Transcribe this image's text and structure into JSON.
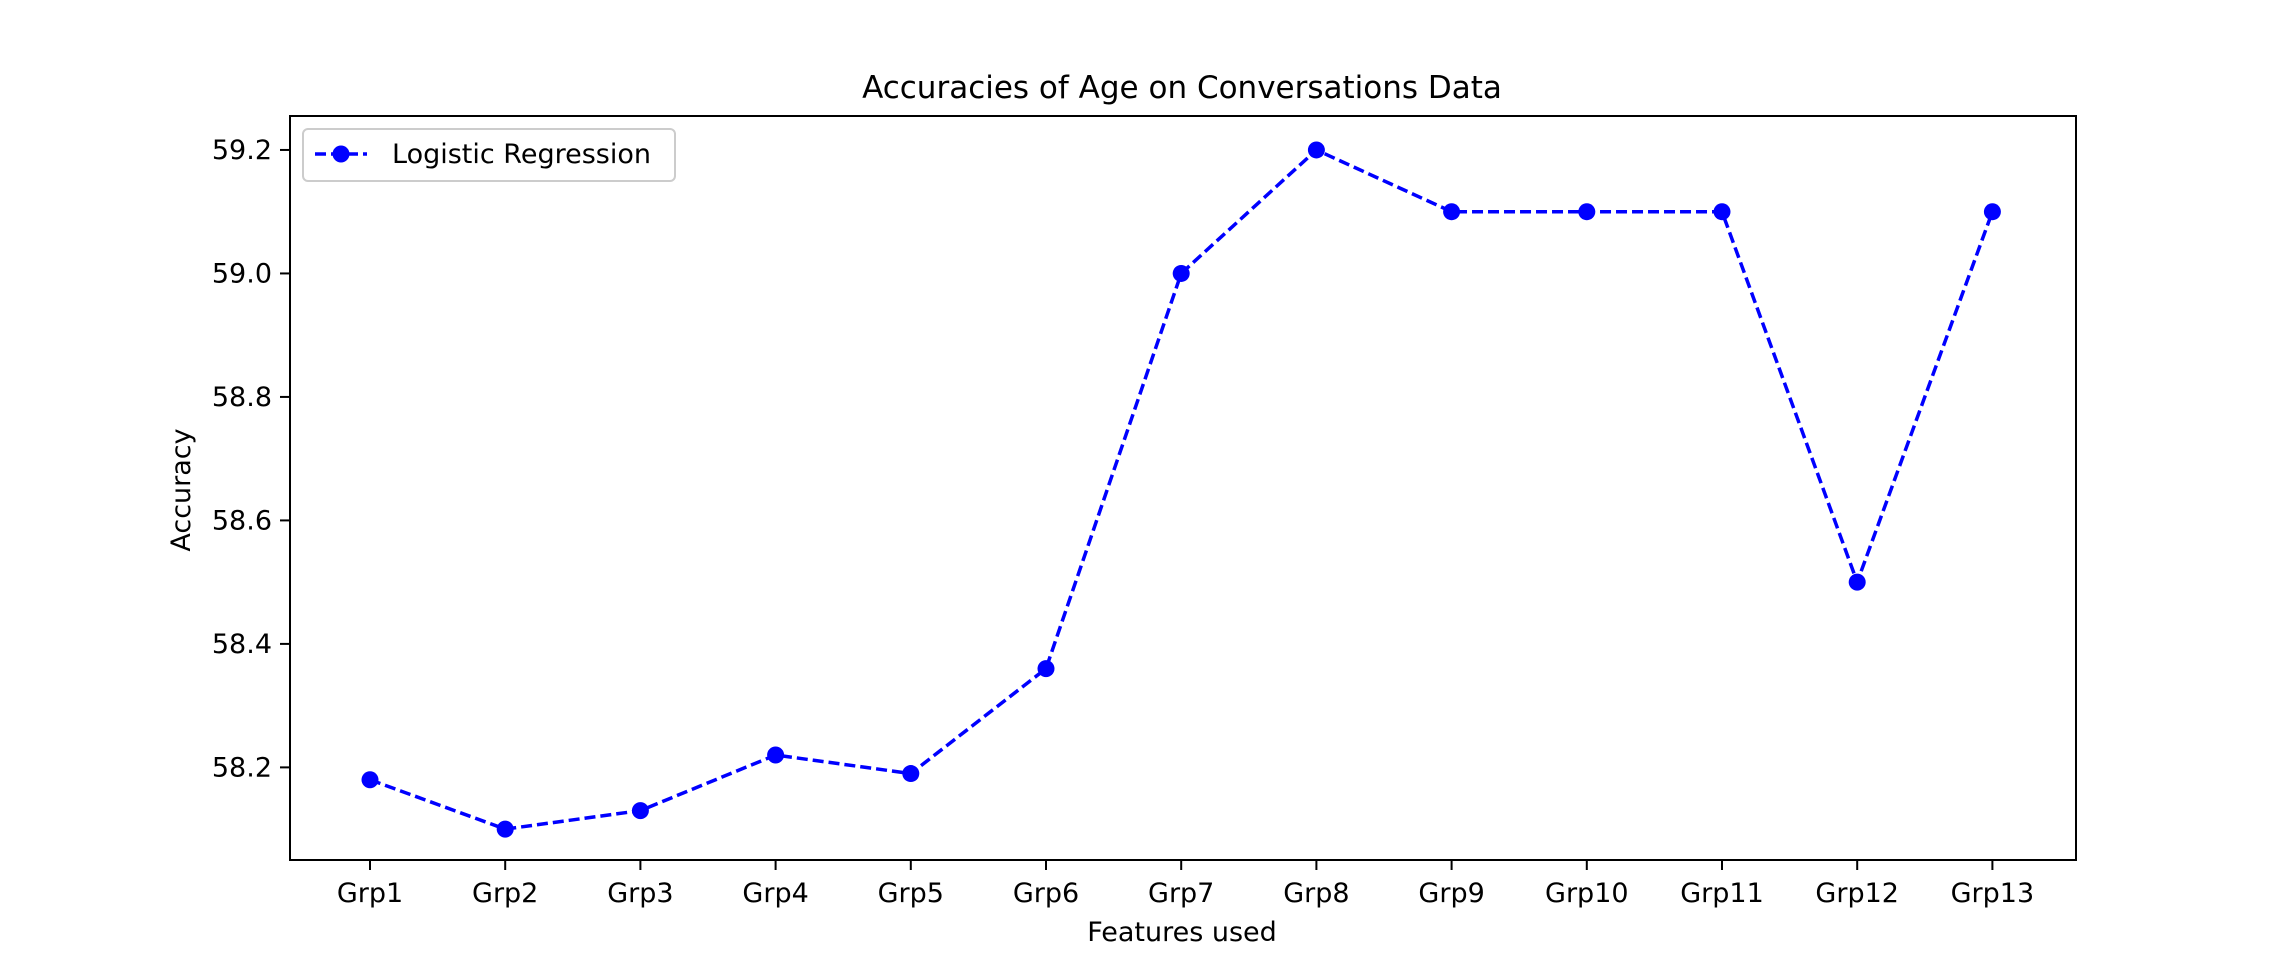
{
  "chart_data": {
    "type": "line",
    "title": "Accuracies of Age on Conversations Data",
    "xlabel": "Features used",
    "ylabel": "Accuracy",
    "categories": [
      "Grp1",
      "Grp2",
      "Grp3",
      "Grp4",
      "Grp5",
      "Grp6",
      "Grp7",
      "Grp8",
      "Grp9",
      "Grp10",
      "Grp11",
      "Grp12",
      "Grp13"
    ],
    "series": [
      {
        "name": "Logistic Regression",
        "values": [
          58.18,
          58.1,
          58.13,
          58.22,
          58.19,
          58.36,
          59.0,
          59.2,
          59.1,
          59.1,
          59.1,
          58.5,
          59.1
        ],
        "color": "#0000ff",
        "line_style": "dashed",
        "marker": "circle"
      }
    ],
    "ylim": [
      58.05,
      59.255
    ],
    "yticks": [
      58.2,
      58.4,
      58.6,
      58.8,
      59.0,
      59.2
    ],
    "ytick_labels": [
      "58.2",
      "58.4",
      "58.6",
      "58.8",
      "59.0",
      "59.2"
    ],
    "legend_position": "top-left",
    "grid": false
  }
}
